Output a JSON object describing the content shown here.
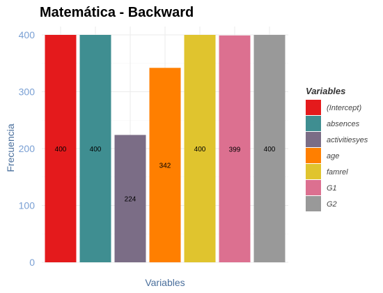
{
  "chart_data": {
    "type": "bar",
    "title": "Matemática - Backward",
    "xlabel": "Variables",
    "ylabel": "Frecuencia",
    "ylim": [
      0,
      400
    ],
    "yticks": [
      "0",
      "100",
      "200",
      "300",
      "400"
    ],
    "grid": true,
    "legend": {
      "title": "Variables",
      "position": "right"
    },
    "categories": [
      "(Intercept)",
      "absences",
      "activitiesyes",
      "age",
      "famrel",
      "G1",
      "G2"
    ],
    "values": [
      400,
      400,
      224,
      342,
      400,
      399,
      400
    ],
    "data_labels": [
      "400",
      "400",
      "224",
      "342",
      "400",
      "399",
      "400"
    ],
    "colors": [
      "#e41a1c",
      "#3f8e91",
      "#7b6d86",
      "#ff7f00",
      "#e0c42e",
      "#dc7090",
      "#999999"
    ]
  }
}
